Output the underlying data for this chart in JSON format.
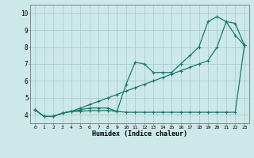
{
  "xlabel": "Humidex (Indice chaleur)",
  "bg_color": "#cce8e8",
  "grid_color": "#aad0d0",
  "line_color": "#1a7a6e",
  "xlim": [
    -0.5,
    23.5
  ],
  "ylim": [
    3.5,
    10.5
  ],
  "xticks": [
    0,
    1,
    2,
    3,
    4,
    5,
    6,
    7,
    8,
    9,
    10,
    11,
    12,
    13,
    14,
    15,
    16,
    17,
    18,
    19,
    20,
    21,
    22,
    23
  ],
  "yticks": [
    4,
    5,
    6,
    7,
    8,
    9,
    10
  ],
  "line1": [
    4.3,
    3.9,
    3.9,
    4.1,
    4.2,
    4.2,
    4.25,
    4.25,
    4.25,
    4.2,
    4.15,
    4.15,
    4.15,
    4.15,
    4.15,
    4.15,
    4.15,
    4.15,
    4.15,
    4.15,
    4.15,
    4.15,
    4.15,
    8.1
  ],
  "line2": [
    4.3,
    3.9,
    3.9,
    4.1,
    4.2,
    4.3,
    4.4,
    4.4,
    4.4,
    4.2,
    5.8,
    7.1,
    7.0,
    6.5,
    6.5,
    6.5,
    7.0,
    7.5,
    8.0,
    9.5,
    9.8,
    9.5,
    8.7,
    8.1
  ],
  "line3": [
    4.3,
    3.9,
    3.9,
    4.1,
    4.2,
    4.4,
    4.6,
    4.8,
    5.0,
    5.2,
    5.4,
    5.6,
    5.8,
    6.0,
    6.2,
    6.4,
    6.6,
    6.8,
    7.0,
    7.2,
    8.0,
    9.5,
    9.4,
    8.1
  ]
}
